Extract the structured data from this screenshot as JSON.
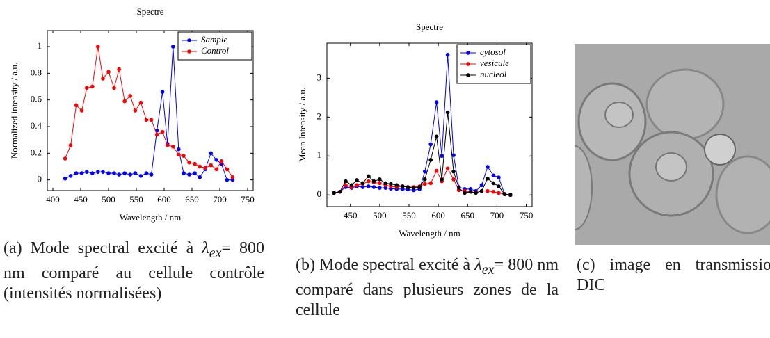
{
  "chart_data": [
    {
      "type": "line",
      "title": "Spectre",
      "xlabel": "Wavelength / nm",
      "ylabel": "Normalized intensity / a.u.",
      "x": [
        422,
        432,
        442,
        452,
        461,
        471,
        481,
        490,
        500,
        510,
        519,
        529,
        539,
        548,
        558,
        568,
        577,
        587,
        597,
        606,
        616,
        626,
        635,
        645,
        655,
        664,
        674,
        684,
        694,
        703,
        713,
        723
      ],
      "series": [
        {
          "name": "Sample",
          "color": "#0000ff",
          "values": [
            0.01,
            0.03,
            0.05,
            0.05,
            0.06,
            0.05,
            0.06,
            0.06,
            0.05,
            0.05,
            0.04,
            0.05,
            0.04,
            0.05,
            0.03,
            0.05,
            0.04,
            0.37,
            0.66,
            0.27,
            1.0,
            0.23,
            0.05,
            0.04,
            0.05,
            0.02,
            0.08,
            0.2,
            0.15,
            0.12,
            0.0,
            0.0
          ]
        },
        {
          "name": "Control",
          "color": "#ff0000",
          "values": [
            0.16,
            0.26,
            0.56,
            0.52,
            0.69,
            0.7,
            1.0,
            0.76,
            0.81,
            0.69,
            0.83,
            0.59,
            0.63,
            0.52,
            0.58,
            0.45,
            0.45,
            0.34,
            0.36,
            0.26,
            0.25,
            0.19,
            0.18,
            0.13,
            0.12,
            0.1,
            0.09,
            0.11,
            0.08,
            0.14,
            0.08,
            0.02
          ]
        }
      ],
      "xlim": [
        390,
        760
      ],
      "xticks": [
        400,
        450,
        500,
        550,
        600,
        650,
        700,
        750
      ],
      "ylim": [
        -0.08,
        1.12
      ],
      "yticks": [
        0,
        0.2,
        0.4,
        0.6,
        0.8,
        1
      ],
      "legend": "top-right"
    },
    {
      "type": "line",
      "title": "Spectre",
      "xlabel": "Wavelength / nm",
      "ylabel": "Mean Intensity / a.u.",
      "x": [
        422,
        432,
        442,
        452,
        461,
        471,
        481,
        490,
        500,
        510,
        519,
        529,
        539,
        548,
        558,
        568,
        577,
        587,
        597,
        606,
        616,
        626,
        635,
        645,
        655,
        664,
        674,
        684,
        694,
        703,
        713,
        723
      ],
      "series": [
        {
          "name": "cytosol",
          "color": "#0000ff",
          "values": [
            0.05,
            0.08,
            0.2,
            0.18,
            0.22,
            0.2,
            0.22,
            0.2,
            0.18,
            0.18,
            0.16,
            0.15,
            0.15,
            0.14,
            0.12,
            0.15,
            0.6,
            1.3,
            2.38,
            1.0,
            3.6,
            1.02,
            0.2,
            0.15,
            0.15,
            0.1,
            0.25,
            0.72,
            0.5,
            0.45,
            0.02,
            0.0
          ]
        },
        {
          "name": "vesicule",
          "color": "#ff0000",
          "values": [
            0.05,
            0.08,
            0.25,
            0.2,
            0.25,
            0.28,
            0.35,
            0.32,
            0.3,
            0.25,
            0.22,
            0.2,
            0.22,
            0.2,
            0.2,
            0.22,
            0.28,
            0.3,
            0.62,
            0.35,
            0.68,
            0.4,
            0.12,
            0.1,
            0.08,
            0.06,
            0.1,
            0.1,
            0.08,
            0.05,
            0.02,
            0.0
          ]
        },
        {
          "name": "nucleol",
          "color": "#000000",
          "values": [
            0.05,
            0.08,
            0.35,
            0.25,
            0.38,
            0.3,
            0.48,
            0.35,
            0.4,
            0.3,
            0.28,
            0.25,
            0.22,
            0.2,
            0.18,
            0.2,
            0.4,
            0.9,
            1.5,
            0.4,
            2.12,
            0.6,
            0.18,
            0.05,
            0.08,
            0.05,
            0.1,
            0.42,
            0.3,
            0.22,
            0.02,
            0.0
          ]
        }
      ],
      "xlim": [
        410,
        760
      ],
      "xticks": [
        400,
        450,
        500,
        550,
        600,
        650,
        700,
        750
      ],
      "ylim": [
        -0.3,
        3.9
      ],
      "yticks": [
        0,
        1,
        2,
        3
      ],
      "legend": "top-right"
    }
  ],
  "captions": [
    {
      "pre": "(a) Mode spectral excité à",
      "symbol": "λ",
      "sub": "ex",
      "post": "= 800 nm comparé au cellule contrôle (intensités normalisées)"
    },
    {
      "pre": "(b) Mode spectral excité à",
      "symbol": "λ",
      "sub": "ex",
      "post": "= 800 nm comparé dans plusieurs zones de la cellule"
    },
    {
      "pre": "(c) image en transmission DIC"
    }
  ]
}
